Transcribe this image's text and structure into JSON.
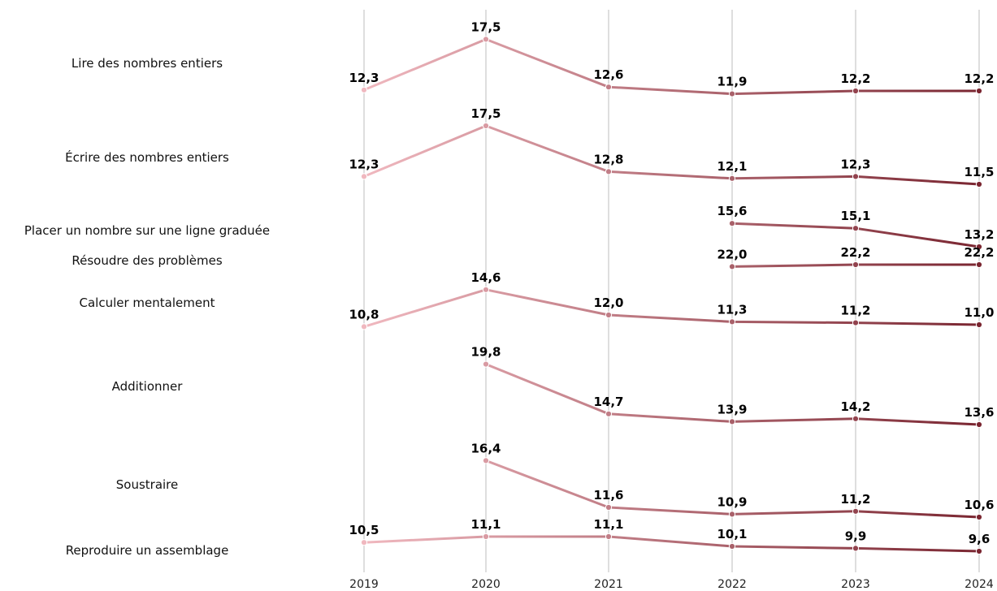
{
  "chart_data": {
    "type": "line",
    "x": [
      "2019",
      "2020",
      "2021",
      "2022",
      "2023",
      "2024"
    ],
    "grid": "vertical",
    "color_start": "#f0b8bf",
    "color_end": "#7a2631",
    "rows": [
      {
        "label": "Lire des nombres entiers",
        "values": [
          12.3,
          17.5,
          12.6,
          11.9,
          12.2,
          12.2
        ],
        "value_labels": [
          "12,3",
          "17,5",
          "12,6",
          "11,9",
          "12,2",
          "12,2"
        ]
      },
      {
        "label": "Écrire des nombres entiers",
        "values": [
          12.3,
          17.5,
          12.8,
          12.1,
          12.3,
          11.5
        ],
        "value_labels": [
          "12,3",
          "17,5",
          "12,8",
          "12,1",
          "12,3",
          "11,5"
        ]
      },
      {
        "label": "Placer un nombre sur une ligne graduée",
        "values": [
          null,
          null,
          null,
          15.6,
          15.1,
          13.2
        ],
        "value_labels": [
          "",
          "",
          "",
          "15,6",
          "15,1",
          "13,2"
        ]
      },
      {
        "label": "Résoudre des problèmes",
        "values": [
          null,
          null,
          null,
          22.0,
          22.2,
          22.2
        ],
        "value_labels": [
          "",
          "",
          "",
          "22,0",
          "22,2",
          "22,2"
        ]
      },
      {
        "label": "Calculer mentalement",
        "values": [
          10.8,
          14.6,
          12.0,
          11.3,
          11.2,
          11.0
        ],
        "value_labels": [
          "10,8",
          "14,6",
          "12,0",
          "11,3",
          "11,2",
          "11,0"
        ]
      },
      {
        "label": "Additionner",
        "values": [
          null,
          19.8,
          14.7,
          13.9,
          14.2,
          13.6
        ],
        "value_labels": [
          "",
          "19,8",
          "14,7",
          "13,9",
          "14,2",
          "13,6"
        ]
      },
      {
        "label": "Soustraire",
        "values": [
          null,
          16.4,
          11.6,
          10.9,
          11.2,
          10.6
        ],
        "value_labels": [
          "",
          "16,4",
          "11,6",
          "10,9",
          "11,2",
          "10,6"
        ]
      },
      {
        "label": "Reproduire un assemblage",
        "values": [
          10.5,
          11.1,
          11.1,
          10.1,
          9.9,
          9.6
        ],
        "value_labels": [
          "10,5",
          "11,1",
          "11,1",
          "10,1",
          "9,9",
          "9,6"
        ]
      }
    ]
  }
}
